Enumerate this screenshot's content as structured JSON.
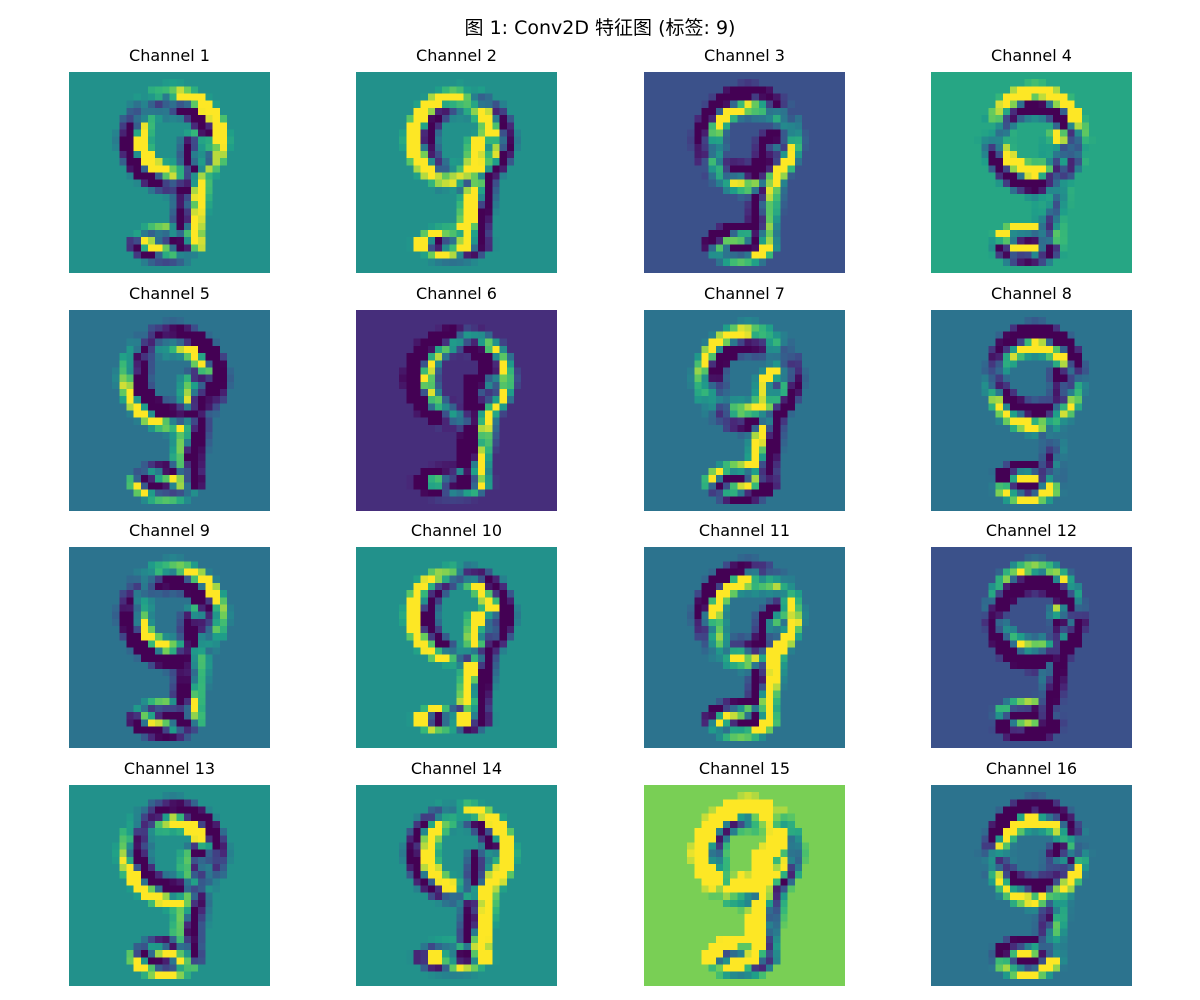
{
  "figure": {
    "title": "图 1: Conv2D 特征图 (标签: 9)"
  },
  "panels": [
    {
      "title": "Channel 1",
      "background": "#21918c"
    },
    {
      "title": "Channel 2",
      "background": "#21918c"
    },
    {
      "title": "Channel 3",
      "background": "#3b528b"
    },
    {
      "title": "Channel 4",
      "background": "#22a884"
    },
    {
      "title": "Channel 5",
      "background": "#2c728e"
    },
    {
      "title": "Channel 6",
      "background": "#472d7b"
    },
    {
      "title": "Channel 7",
      "background": "#2c728e"
    },
    {
      "title": "Channel 8",
      "background": "#2c728e"
    },
    {
      "title": "Channel 9",
      "background": "#2c728e"
    },
    {
      "title": "Channel 10",
      "background": "#21918c"
    },
    {
      "title": "Channel 11",
      "background": "#2c728e"
    },
    {
      "title": "Channel 12",
      "background": "#3b528b"
    },
    {
      "title": "Channel 13",
      "background": "#21918c"
    },
    {
      "title": "Channel 14",
      "background": "#21918c"
    },
    {
      "title": "Channel 15",
      "background": "#7ad151"
    },
    {
      "title": "Channel 16",
      "background": "#2c728e"
    }
  ]
}
